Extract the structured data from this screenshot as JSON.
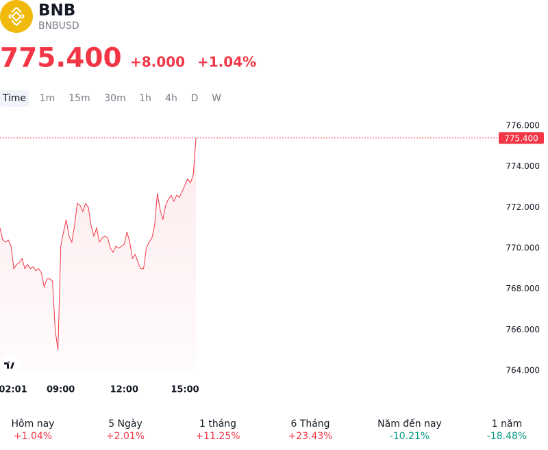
{
  "header": {
    "symbol": "BNB",
    "pair": "BNBUSD",
    "price": "775.400",
    "change": "+8.000",
    "change_pct": "+1.04%"
  },
  "intervals": [
    "Time",
    "1m",
    "15m",
    "30m",
    "1h",
    "4h",
    "D",
    "W"
  ],
  "chart_data": {
    "type": "line",
    "categories": [
      null,
      null,
      null,
      null,
      "02:01",
      null,
      null,
      null,
      null,
      null,
      null,
      null,
      null,
      null,
      null,
      null,
      null,
      null,
      null,
      null,
      null,
      null,
      "09:00",
      null,
      null,
      null,
      null,
      null,
      null,
      null,
      null,
      null,
      null,
      null,
      null,
      null,
      null,
      null,
      null,
      null,
      null,
      null,
      null,
      null,
      null,
      "12:00",
      null,
      null,
      null,
      null,
      null,
      null,
      null,
      null,
      null,
      null,
      null,
      null,
      null,
      null,
      null,
      null,
      null,
      null,
      null,
      null,
      null,
      "15:00",
      null,
      null,
      null,
      null
    ],
    "series": [
      {
        "name": "BNBUSD",
        "color": "#f23645",
        "values": [
          771.0,
          770.4,
          770.3,
          770.4,
          770.1,
          769.0,
          769.2,
          769.3,
          769.5,
          769.0,
          769.2,
          769.0,
          769.1,
          768.9,
          769.0,
          768.8,
          768.1,
          768.5,
          768.5,
          768.4,
          766.0,
          765.0,
          770.1,
          770.8,
          771.4,
          770.6,
          770.3,
          771.1,
          772.2,
          772.1,
          771.8,
          772.2,
          772.0,
          771.1,
          770.6,
          771.0,
          770.3,
          770.5,
          770.6,
          770.5,
          770.0,
          769.8,
          770.1,
          770.0,
          770.1,
          770.2,
          770.8,
          770.3,
          769.5,
          769.7,
          769.3,
          769.0,
          769.0,
          770.0,
          770.3,
          770.5,
          771.1,
          772.7,
          771.9,
          771.4,
          772.1,
          772.4,
          772.6,
          772.3,
          772.6,
          772.5,
          772.8,
          773.1,
          773.4,
          773.2,
          773.6,
          775.4
        ]
      }
    ],
    "last_price": {
      "value": 775.4,
      "label": "775.400"
    },
    "ylim": [
      763.6,
      776.8
    ],
    "yticks": [
      {
        "value": 764,
        "label": "764.000"
      },
      {
        "value": 766,
        "label": "766.000"
      },
      {
        "value": 768,
        "label": "768.000"
      },
      {
        "value": 770,
        "label": "770.000"
      },
      {
        "value": 772,
        "label": "772.000"
      },
      {
        "value": 774,
        "label": "774.000"
      },
      {
        "value": 776,
        "label": "776.000"
      }
    ]
  },
  "periods": [
    {
      "label": "Hôm nay",
      "change": "+1.04%",
      "color": "#f23645"
    },
    {
      "label": "5 Ngày",
      "change": "+2.01%",
      "color": "#f23645"
    },
    {
      "label": "1 tháng",
      "change": "+11.25%",
      "color": "#f23645"
    },
    {
      "label": "6 Tháng",
      "change": "+23.43%",
      "color": "#f23645"
    },
    {
      "label": "Năm đến nay",
      "change": "-10.21%",
      "color": "#089981"
    },
    {
      "label": "1 năm",
      "change": "-18.48%",
      "color": "#089981"
    }
  ]
}
